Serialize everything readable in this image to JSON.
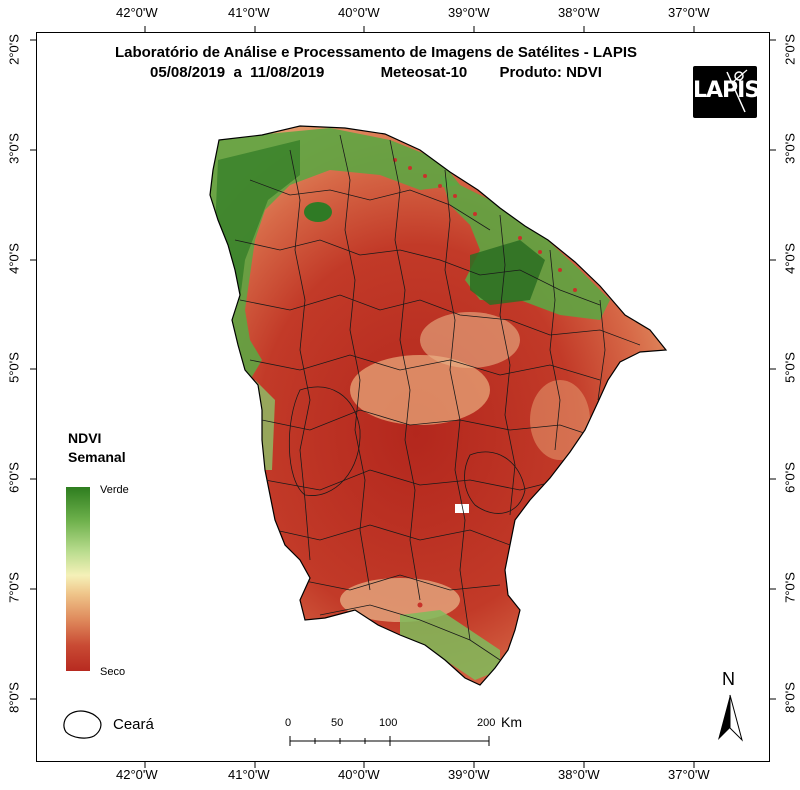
{
  "title": {
    "line1": "Laboratório de Análise e Processamento de Imagens de Satélites - LAPIS",
    "dates": "05/08/2019  a  11/08/2019",
    "satellite": "Meteosat-10",
    "product": "Produto: NDVI"
  },
  "logo": {
    "text": "LAPIS",
    "icon": "satellite-logo-icon"
  },
  "graticule": {
    "longitudes": [
      "42°0'W",
      "41°0'W",
      "40°0'W",
      "39°0'W",
      "38°0'W",
      "37°0'W"
    ],
    "latitudes": [
      "2°0'S",
      "3°0'S",
      "4°0'S",
      "5°0'S",
      "6°0'S",
      "7°0'S",
      "8°0'S"
    ]
  },
  "legend": {
    "title_line1": "NDVI",
    "title_line2": "Semanal",
    "high_label": "Verde",
    "low_label": "Seco",
    "colors": [
      "#2e7d1f",
      "#6db04b",
      "#b9dc8e",
      "#f5f1b8",
      "#efc58a",
      "#df8a5c",
      "#c94b34",
      "#b72a20"
    ]
  },
  "inset": {
    "label": "Ceará"
  },
  "scale_bar": {
    "ticks": [
      "0",
      "50",
      "100",
      "200"
    ],
    "unit": "Km"
  },
  "north_arrow": {
    "label": "N"
  }
}
